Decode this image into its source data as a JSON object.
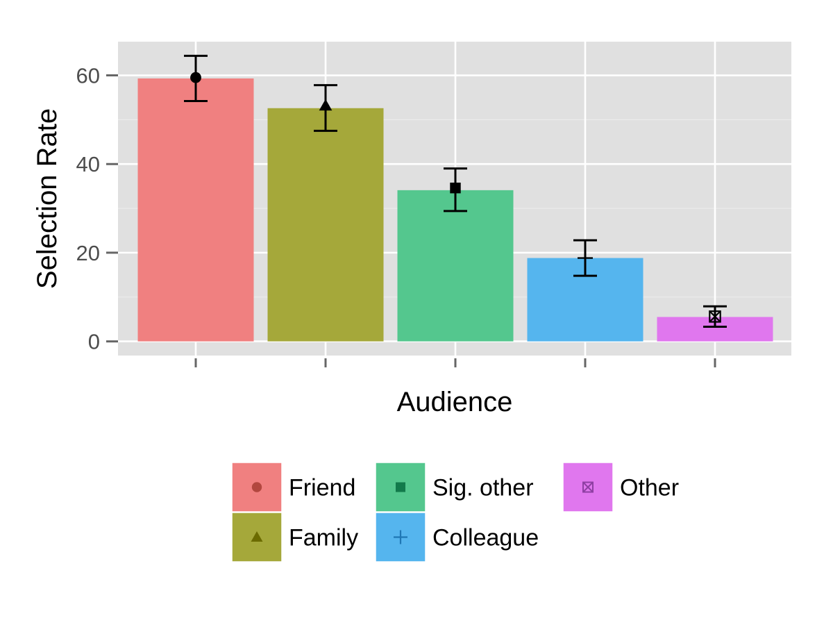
{
  "chart_data": {
    "type": "bar",
    "title": "",
    "xlabel": "Audience",
    "ylabel": "Selection Rate",
    "ylim": [
      -3.2,
      67.6
    ],
    "yticks": [
      0,
      20,
      40,
      60
    ],
    "x_tick_labels_shown": false,
    "grid": true,
    "legend_position": "bottom",
    "series": [
      {
        "name": "Friend",
        "value": 59.3,
        "point": 59.5,
        "err_low": 54.2,
        "err_high": 64.4,
        "color": "#F08080",
        "marker": "circle",
        "marker_color": "#B2473F"
      },
      {
        "name": "Family",
        "value": 52.6,
        "point": 53.2,
        "err_low": 47.5,
        "err_high": 57.8,
        "color": "#A5A83A",
        "marker": "triangle",
        "marker_color": "#6B6B00"
      },
      {
        "name": "Sig. other",
        "value": 34.1,
        "point": 34.6,
        "err_low": 29.4,
        "err_high": 39.0,
        "color": "#54C78E",
        "marker": "square",
        "marker_color": "#127A4B"
      },
      {
        "name": "Colleague",
        "value": 18.8,
        "point": 18.8,
        "err_low": 14.8,
        "err_high": 22.8,
        "color": "#55B5EE",
        "marker": "plus",
        "marker_color": "#1F77B4"
      },
      {
        "name": "Other",
        "value": 5.5,
        "point": 5.6,
        "err_low": 3.3,
        "err_high": 7.9,
        "color": "#E077EE",
        "marker": "boxx",
        "marker_color": "#8E3FA3"
      }
    ],
    "colors": {
      "panel_background": "#E0E0E0",
      "grid_major": "#FFFFFF",
      "grid_minor": "#EBEBEB",
      "tick_text": "#4d4d4d",
      "tick_mark": "#666666",
      "error_bar": "#000000"
    }
  },
  "legend": {
    "columns": [
      [
        "Friend",
        "Family"
      ],
      [
        "Sig. other",
        "Colleague"
      ],
      [
        "Other"
      ]
    ]
  }
}
